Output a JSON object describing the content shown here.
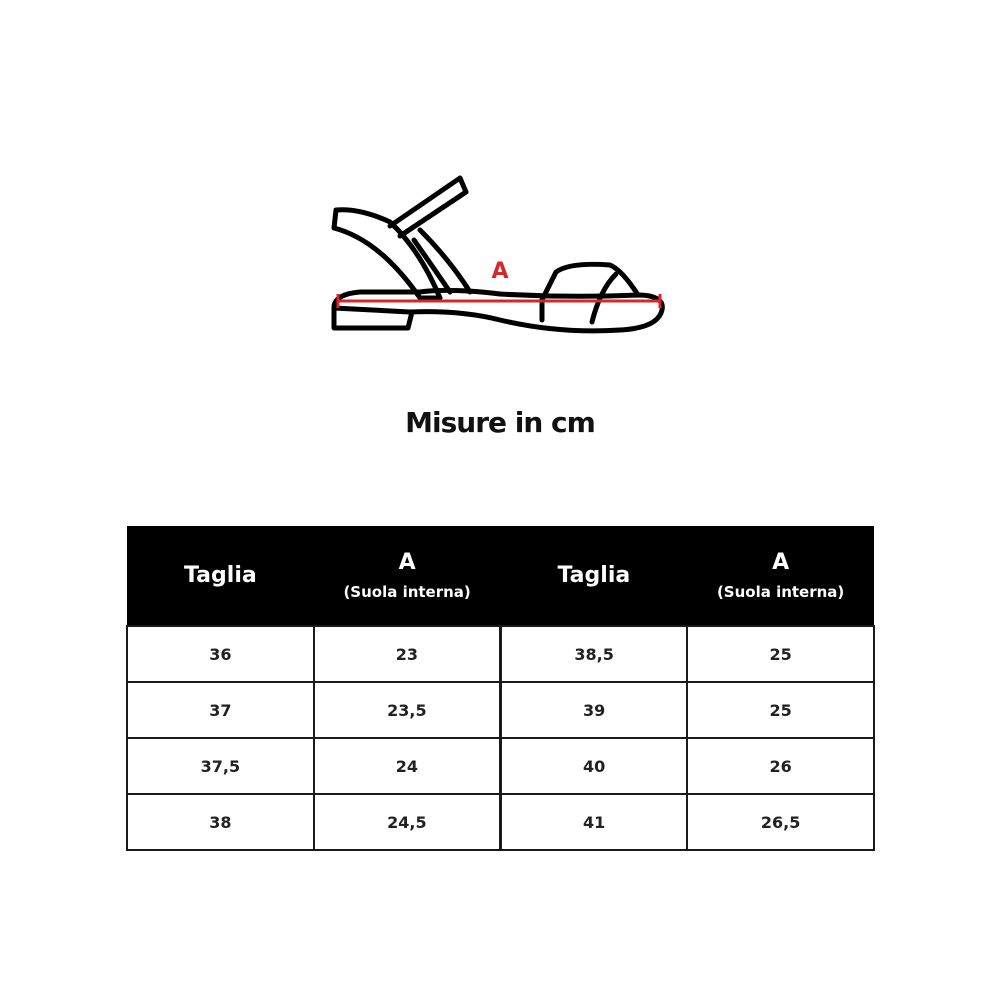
{
  "diagram": {
    "measure_label": "A",
    "measure_color": "#d7262e"
  },
  "title": "Misure in cm",
  "table": {
    "headers": [
      {
        "main": "Taglia",
        "sub": ""
      },
      {
        "main": "A",
        "sub": "(Suola interna)"
      },
      {
        "main": "Taglia",
        "sub": ""
      },
      {
        "main": "A",
        "sub": "(Suola interna)"
      }
    ],
    "rows": [
      [
        "36",
        "23",
        "38,5",
        "25"
      ],
      [
        "37",
        "23,5",
        "39",
        "25"
      ],
      [
        "37,5",
        "24",
        "40",
        "26"
      ],
      [
        "38",
        "24,5",
        "41",
        "26,5"
      ]
    ]
  }
}
